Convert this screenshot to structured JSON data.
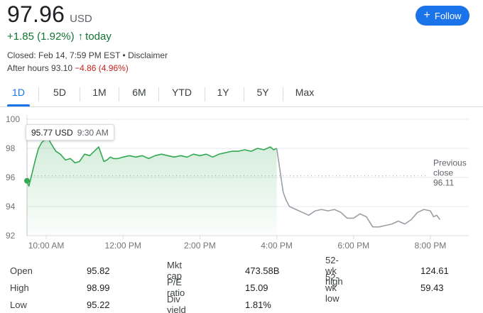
{
  "quote": {
    "price": "97.96",
    "currency": "USD",
    "change": "+1.85 (1.92%)",
    "change_arrow": "↑",
    "change_period": "today",
    "closed_text": "Closed: Feb 14, 7:59 PM EST • Disclaimer",
    "after_hours_label": "After hours 93.10",
    "after_hours_change": "−4.86 (4.96%)"
  },
  "follow_button": {
    "icon": "plus-icon",
    "label": "Follow",
    "glyph": "+"
  },
  "tabs": [
    {
      "label": "1D",
      "active": true
    },
    {
      "label": "5D"
    },
    {
      "label": "1M"
    },
    {
      "label": "6M"
    },
    {
      "label": "YTD"
    },
    {
      "label": "1Y"
    },
    {
      "label": "5Y"
    },
    {
      "label": "Max"
    }
  ],
  "colors": {
    "up": "#137333",
    "down": "#c5221f",
    "line_up": "#34a853",
    "line_after": "#9aa0a6",
    "accent": "#1a73e8"
  },
  "tooltip": {
    "price": "95.77 USD",
    "time": "9:30 AM"
  },
  "chart_data": {
    "type": "line",
    "xlabel": "",
    "ylabel": "",
    "x_tick_labels": [
      "10:00 AM",
      "12:00 PM",
      "2:00 PM",
      "4:00 PM",
      "6:00 PM",
      "8:00 PM"
    ],
    "x_ticks": [
      "10:00",
      "12:00",
      "14:00",
      "16:00",
      "18:00",
      "20:00"
    ],
    "y_tick_labels": [
      "100",
      "98",
      "96",
      "94",
      "92"
    ],
    "ylim": [
      92,
      100
    ],
    "xlim": [
      "09:30",
      "21:00"
    ],
    "grid": true,
    "reference_line": {
      "value": 96.11,
      "label_lines": [
        "Previous",
        "close",
        "96.11"
      ]
    },
    "series": [
      {
        "x": [
          "09:30",
          "09:33",
          "09:38",
          "09:43",
          "09:48",
          "09:53",
          "09:58",
          "10:03",
          "10:08",
          "10:15",
          "10:22",
          "10:30",
          "10:38",
          "10:45",
          "10:52",
          "11:00",
          "11:08",
          "11:15",
          "11:22",
          "11:30",
          "11:35",
          "11:40",
          "11:45",
          "11:52",
          "12:00",
          "12:10",
          "12:20",
          "12:30",
          "12:40",
          "12:50",
          "13:00",
          "13:10",
          "13:20",
          "13:30",
          "13:40",
          "13:50",
          "14:00",
          "14:10",
          "14:20",
          "14:30",
          "14:40",
          "14:50",
          "15:00",
          "15:10",
          "15:20",
          "15:30",
          "15:40",
          "15:50",
          "15:55",
          "16:00"
        ],
        "values": [
          95.77,
          95.4,
          96.3,
          97.2,
          98.0,
          98.4,
          98.6,
          98.7,
          98.3,
          97.8,
          97.6,
          97.2,
          97.3,
          97.0,
          97.1,
          97.6,
          97.5,
          97.8,
          98.1,
          97.1,
          97.2,
          97.4,
          97.3,
          97.3,
          97.4,
          97.5,
          97.4,
          97.5,
          97.3,
          97.5,
          97.6,
          97.5,
          97.4,
          97.5,
          97.4,
          97.6,
          97.5,
          97.6,
          97.4,
          97.6,
          97.7,
          97.8,
          97.8,
          97.9,
          97.8,
          98.0,
          97.9,
          98.1,
          97.9,
          98.0
        ]
      },
      {
        "x": [
          "16:00",
          "16:05",
          "16:10",
          "16:15",
          "16:20",
          "16:30",
          "16:40",
          "16:50",
          "17:00",
          "17:10",
          "17:20",
          "17:30",
          "17:40",
          "17:50",
          "18:00",
          "18:10",
          "18:20",
          "18:30",
          "18:40",
          "18:50",
          "19:00",
          "19:10",
          "19:20",
          "19:30",
          "19:40",
          "19:50",
          "20:00",
          "20:05",
          "20:10",
          "20:15"
        ],
        "values": [
          98.0,
          96.5,
          95.0,
          94.4,
          94.0,
          93.8,
          93.6,
          93.4,
          93.7,
          93.8,
          93.7,
          93.8,
          93.6,
          93.2,
          93.2,
          93.5,
          93.3,
          92.6,
          92.6,
          92.7,
          92.8,
          93.0,
          92.8,
          93.1,
          93.6,
          93.8,
          93.7,
          93.3,
          93.4,
          93.1
        ]
      }
    ]
  },
  "stats": [
    {
      "key": "Open",
      "value": "95.82"
    },
    {
      "key": "High",
      "value": "98.99"
    },
    {
      "key": "Low",
      "value": "95.22"
    },
    {
      "key": "Mkt cap",
      "value": "473.58B"
    },
    {
      "key": "P/E ratio",
      "value": "15.09"
    },
    {
      "key": "Div yield",
      "value": "1.81%"
    },
    {
      "key": "52-wk high",
      "value": "124.61"
    },
    {
      "key": "52-wk low",
      "value": "59.43"
    }
  ]
}
